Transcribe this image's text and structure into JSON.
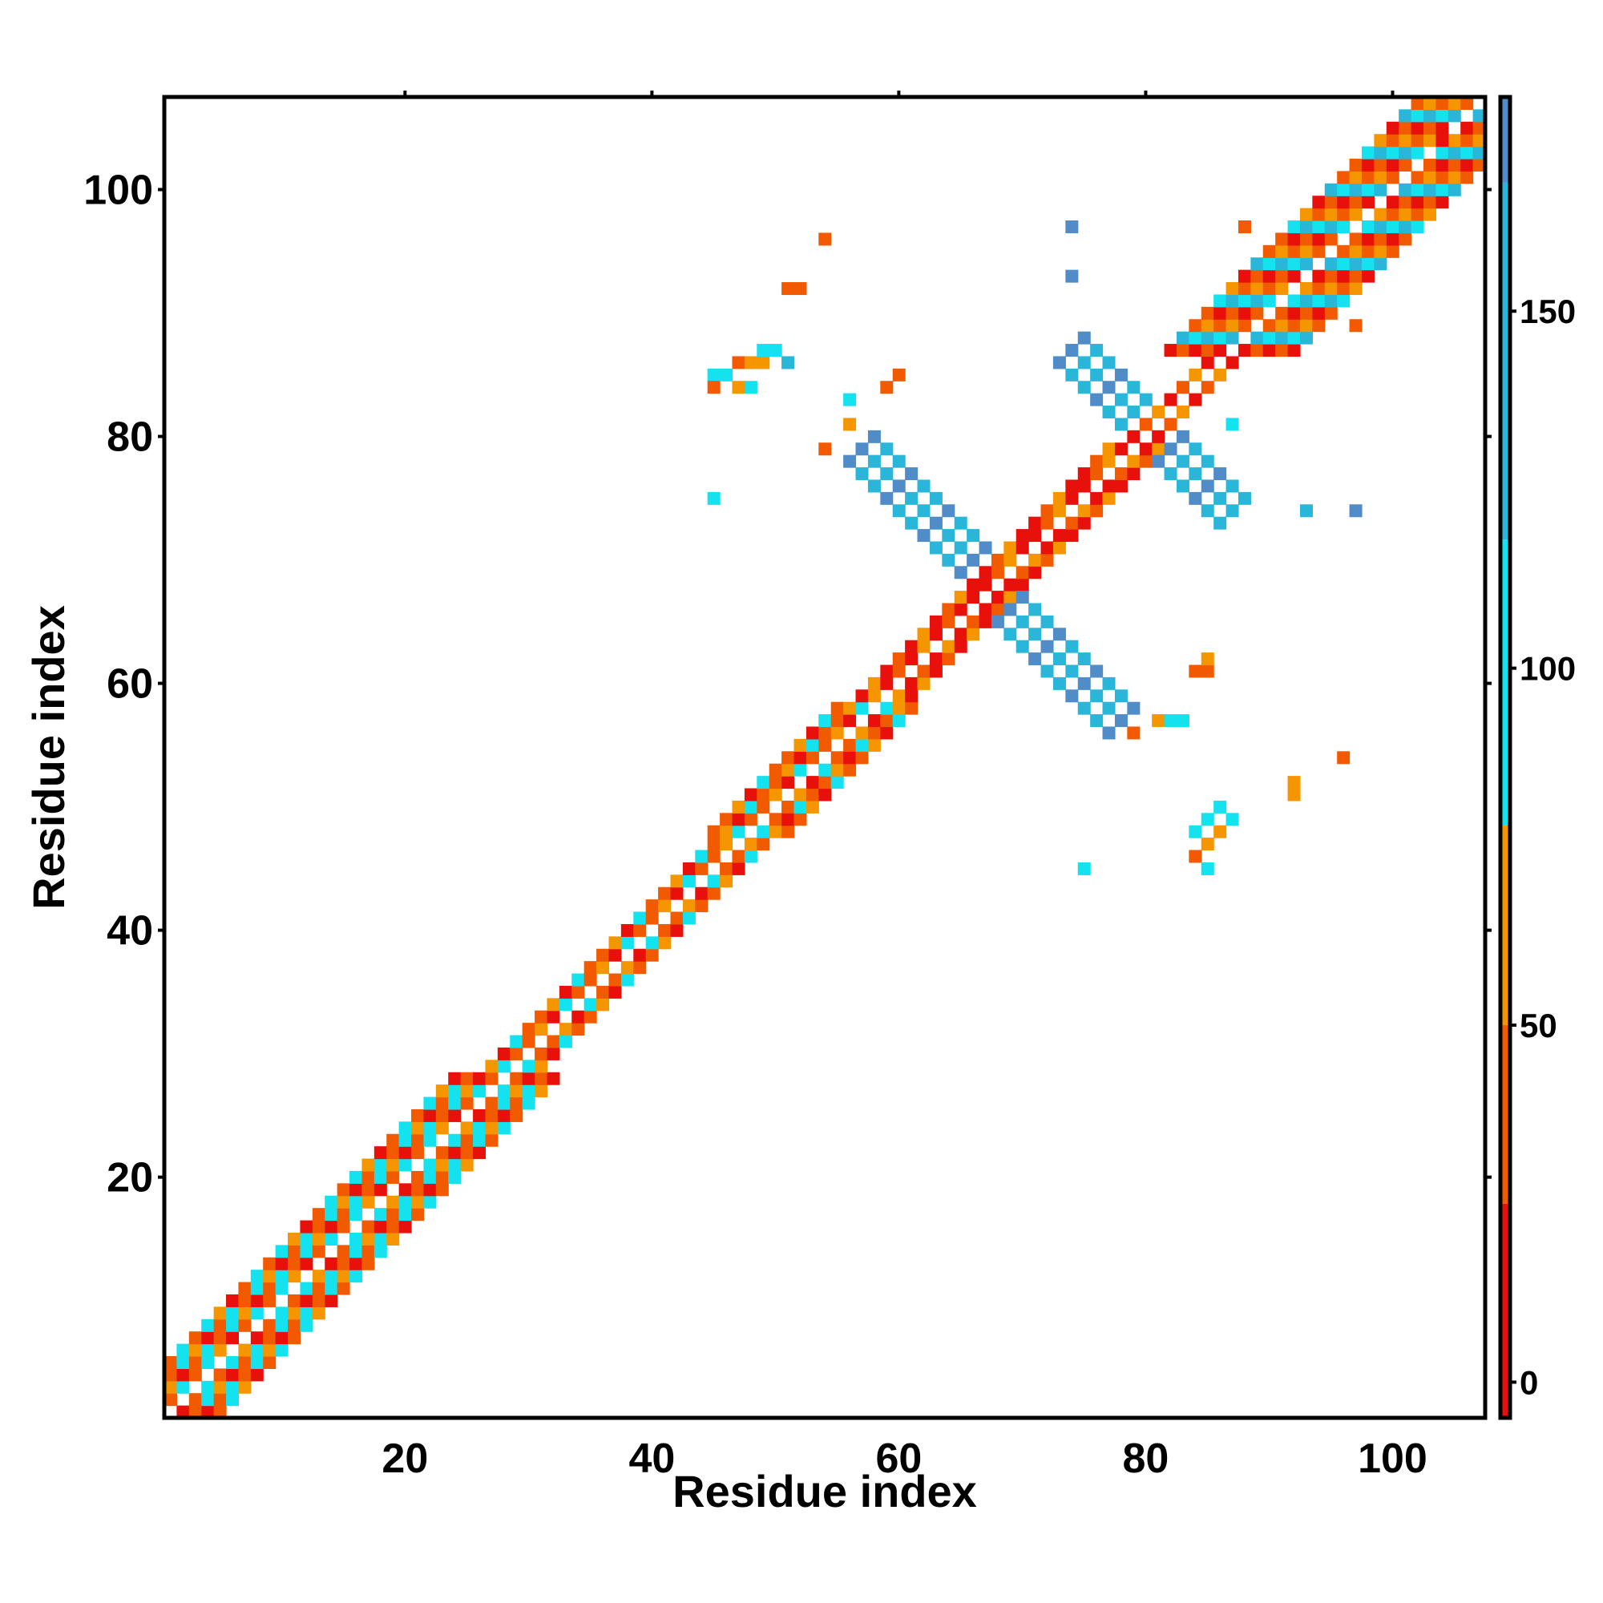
{
  "chart_data": {
    "type": "heatmap",
    "title": "",
    "xlabel": "Residue index",
    "ylabel": "Residue index",
    "n_residues": 107,
    "xlim": [
      0.5,
      107.5
    ],
    "ylim": [
      0.5,
      107.5
    ],
    "x_ticks": [
      20,
      40,
      60,
      80,
      100
    ],
    "y_ticks": [
      20,
      40,
      60,
      80,
      100
    ],
    "x_tick_labels": [
      "20",
      "40",
      "60",
      "80",
      "100"
    ],
    "y_tick_labels": [
      "20",
      "40",
      "60",
      "80",
      "100"
    ],
    "colorbar": {
      "range": [
        -5,
        180
      ],
      "ticks": [
        0,
        50,
        100,
        150
      ],
      "tick_labels": [
        "0",
        "50",
        "100",
        "150"
      ],
      "bands": [
        {
          "from": -5,
          "to": 25,
          "color": "#e8100a"
        },
        {
          "from": 25,
          "to": 50,
          "color": "#f25a00"
        },
        {
          "from": 50,
          "to": 78,
          "color": "#f59600"
        },
        {
          "from": 78,
          "to": 118,
          "color": "#14e2ee"
        },
        {
          "from": 118,
          "to": 168,
          "color": "#2ab6d8"
        },
        {
          "from": 168,
          "to": 180,
          "color": "#4f8cc8"
        }
      ],
      "top_color": "#ffffff"
    },
    "grid": false,
    "legend": "colorbar-right",
    "segments": [
      {
        "start": [
          1,
          1
        ],
        "end": [
          28,
          28
        ],
        "dir": "diag",
        "halfwidth": 4,
        "values": [
          35,
          110,
          60,
          10,
          35,
          110
        ]
      },
      {
        "start": [
          29,
          29
        ],
        "end": [
          47,
          47
        ],
        "dir": "diag",
        "halfwidth": 2,
        "values": [
          35,
          60,
          10,
          110,
          35
        ]
      },
      {
        "start": [
          48,
          48
        ],
        "end": [
          58,
          58
        ],
        "dir": "diag",
        "halfwidth": 3,
        "values": [
          35,
          70,
          10,
          110,
          35
        ]
      },
      {
        "start": [
          59,
          59
        ],
        "end": [
          66,
          66
        ],
        "dir": "diag",
        "halfwidth": 2,
        "values": [
          10,
          35,
          10,
          60
        ]
      },
      {
        "start": [
          67,
          67
        ],
        "end": [
          79,
          79
        ],
        "dir": "diag",
        "halfwidth": 2,
        "values": [
          10,
          35,
          60,
          10
        ]
      },
      {
        "start": [
          80,
          80
        ],
        "end": [
          86,
          86
        ],
        "dir": "diag",
        "halfwidth": 1,
        "values": [
          10,
          35,
          60
        ]
      },
      {
        "start": [
          87,
          87
        ],
        "end": [
          107,
          107
        ],
        "dir": "diag",
        "halfwidth": 5,
        "values": [
          35,
          110,
          60,
          10,
          140,
          35
        ]
      },
      {
        "start": [
          57,
          79
        ],
        "end": [
          66,
          70
        ],
        "dir": "anti",
        "halfwidth": 1,
        "values": [
          170,
          140,
          120
        ]
      },
      {
        "start": [
          69,
          66
        ],
        "end": [
          78,
          57
        ],
        "dir": "anti",
        "halfwidth": 1,
        "values": [
          170,
          140,
          120
        ]
      },
      {
        "start": [
          74,
          87
        ],
        "end": [
          79,
          82
        ],
        "dir": "anti",
        "halfwidth": 1,
        "values": [
          170,
          140,
          120
        ]
      },
      {
        "start": [
          82,
          79
        ],
        "end": [
          87,
          74
        ],
        "dir": "anti",
        "halfwidth": 1,
        "values": [
          170,
          140,
          120
        ]
      }
    ],
    "extra_cells": [
      [
        54,
        96,
        45
      ],
      [
        51,
        92,
        45
      ],
      [
        52,
        92,
        45
      ],
      [
        45,
        85,
        110
      ],
      [
        47,
        86,
        45
      ],
      [
        48,
        86,
        60
      ],
      [
        49,
        86,
        60
      ],
      [
        50,
        87,
        110
      ],
      [
        49,
        87,
        110
      ],
      [
        45,
        84,
        35
      ],
      [
        47,
        84,
        60
      ],
      [
        48,
        84,
        110
      ],
      [
        46,
        85,
        110
      ],
      [
        51,
        86,
        120
      ],
      [
        56,
        83,
        110
      ],
      [
        59,
        84,
        35
      ],
      [
        60,
        85,
        35
      ],
      [
        56,
        81,
        60
      ],
      [
        54,
        79,
        35
      ],
      [
        45,
        75,
        110
      ],
      [
        74,
        97,
        170
      ],
      [
        74,
        93,
        170
      ],
      [
        93,
        74,
        140
      ],
      [
        97,
        74,
        170
      ],
      [
        87,
        81,
        110
      ],
      [
        96,
        54,
        45
      ],
      [
        92,
        52,
        60
      ],
      [
        92,
        51,
        60
      ],
      [
        84,
        61,
        35
      ],
      [
        85,
        61,
        35
      ],
      [
        85,
        62,
        60
      ],
      [
        79,
        56,
        35
      ],
      [
        81,
        57,
        60
      ],
      [
        82,
        57,
        110
      ],
      [
        83,
        57,
        110
      ],
      [
        85,
        49,
        110
      ],
      [
        86,
        48,
        60
      ],
      [
        87,
        49,
        110
      ],
      [
        86,
        50,
        110
      ],
      [
        84,
        48,
        110
      ],
      [
        85,
        47,
        60
      ],
      [
        84,
        46,
        45
      ],
      [
        85,
        45,
        110
      ],
      [
        75,
        45,
        110
      ],
      [
        88,
        97,
        35
      ],
      [
        97,
        89,
        35
      ],
      [
        104,
        104,
        0
      ]
    ]
  }
}
